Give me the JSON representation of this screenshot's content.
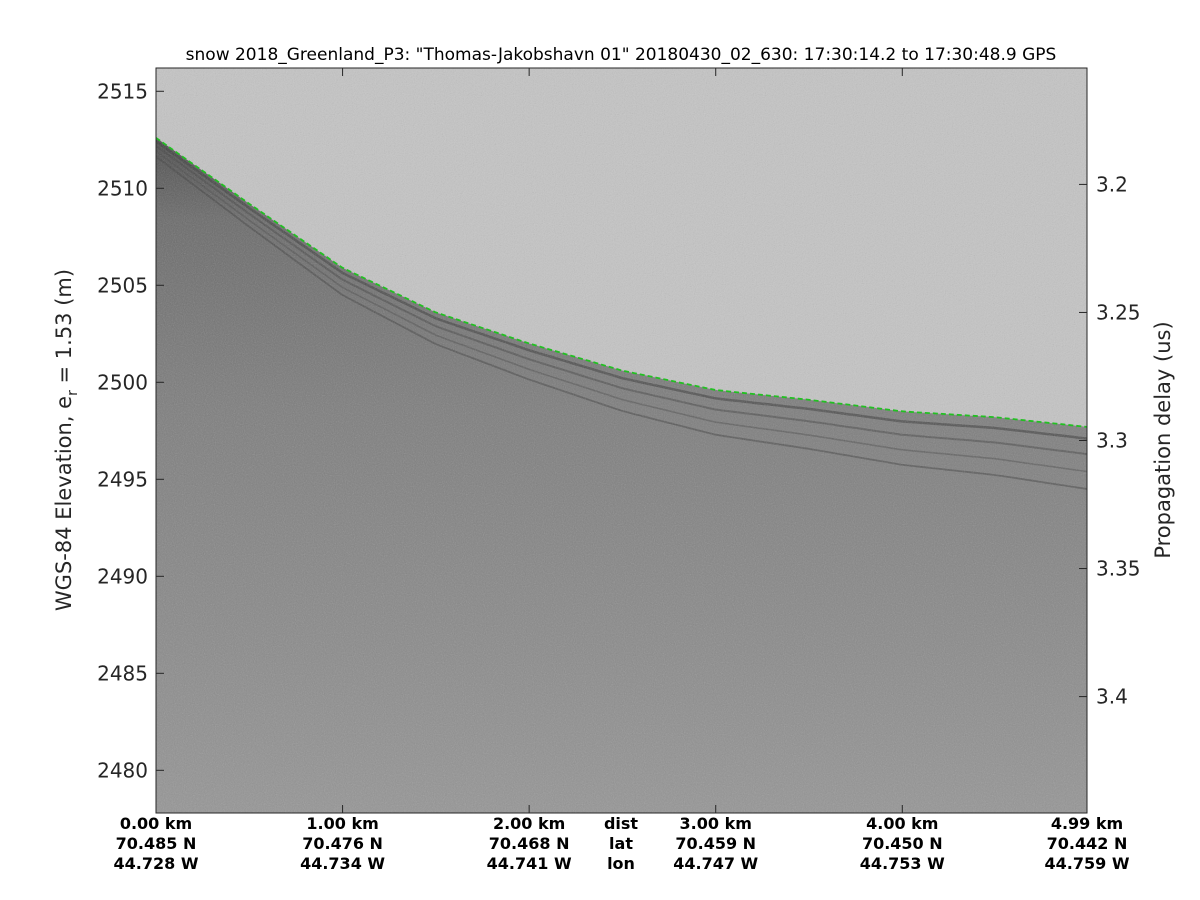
{
  "chart_data": {
    "type": "heatmap",
    "title": "snow 2018_Greenland_P3: \"Thomas-Jakobshavn 01\"  20180430_02_630: 17:30:14.2 to 17:30:48.9 GPS",
    "ylabel_main": "WGS-84 Elevation, e",
    "ylabel_sub": "r",
    "ylabel_tail": " = 1.53 (m)",
    "y2label": "Propagation delay (us)",
    "ylim": [
      2477.8,
      2516.2
    ],
    "yticks": [
      2480,
      2485,
      2490,
      2495,
      2500,
      2505,
      2510,
      2515
    ],
    "y2ticks": [
      {
        "label": "3.2",
        "elev": 2510.2
      },
      {
        "label": "3.25",
        "elev": 2503.6
      },
      {
        "label": "3.3",
        "elev": 2497.0
      },
      {
        "label": "3.35",
        "elev": 2490.4
      },
      {
        "label": "3.4",
        "elev": 2483.8
      }
    ],
    "xlim_km": [
      0,
      4.99
    ],
    "xticks": [
      {
        "dist_km": 0.0,
        "dist": "0.00 km",
        "lat": "70.485 N",
        "lon": "44.728 W"
      },
      {
        "dist_km": 1.0,
        "dist": "1.00 km",
        "lat": "70.476 N",
        "lon": "44.734 W"
      },
      {
        "dist_km": 2.0,
        "dist": "2.00 km",
        "lat": "70.468 N",
        "lon": "44.741 W"
      },
      {
        "dist_km": 3.0,
        "dist": "3.00 km",
        "lat": "70.459 N",
        "lon": "44.747 W"
      },
      {
        "dist_km": 4.0,
        "dist": "4.00 km",
        "lat": "70.450 N",
        "lon": "44.753 W"
      },
      {
        "dist_km": 4.99,
        "dist": "4.99 km",
        "lat": "70.442 N",
        "lon": "44.759 W"
      }
    ],
    "row_labels": {
      "dist": "dist",
      "lat": "lat",
      "lon": "lon"
    },
    "surface": {
      "color": "#22c022",
      "dist_km": [
        0,
        0.5,
        1.0,
        1.5,
        2.0,
        2.5,
        3.0,
        3.5,
        4.0,
        4.5,
        4.99
      ],
      "elev_m": [
        2512.6,
        2509.2,
        2505.9,
        2503.6,
        2502.0,
        2500.6,
        2499.6,
        2499.1,
        2498.5,
        2498.2,
        2497.7
      ]
    },
    "colormap": "gray",
    "grid": false
  }
}
